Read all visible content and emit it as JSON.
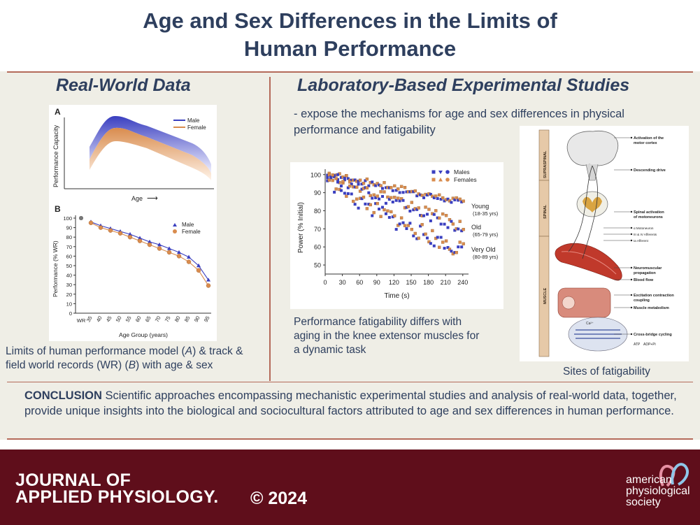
{
  "title": {
    "line1": "Age and Sex Differences in the Limits of",
    "line2": "Human Performance"
  },
  "left": {
    "heading": "Real-World Data",
    "caption_line1": "Limits of human performance model (",
    "caption_A": "A",
    "caption_mid": ") & track &",
    "caption_line2a": "field world records (WR) (",
    "caption_B": "B",
    "caption_line2b": ") with age & sex"
  },
  "chartA": {
    "panel_label": "A",
    "ylabel": "Performance Capacity",
    "xlabel": "Age",
    "arrow": "⟶",
    "legend": [
      "Male",
      "Female"
    ]
  },
  "chart_data": [
    {
      "type": "line",
      "title": "B",
      "xlabel": "Age Group (years)",
      "ylabel": "Performance (% WR)",
      "categories": [
        "WR",
        "35",
        "40",
        "45",
        "50",
        "55",
        "60",
        "65",
        "70",
        "75",
        "80",
        "85",
        "90",
        "95"
      ],
      "yticks": [
        "0",
        "10",
        "20",
        "30",
        "40",
        "50",
        "60",
        "70",
        "80",
        "90",
        "100"
      ],
      "ylim": [
        0,
        100
      ],
      "series": [
        {
          "name": "Male",
          "values": [
            100,
            96,
            92,
            89,
            86,
            83,
            79,
            75,
            72,
            68,
            64,
            59,
            50,
            35
          ]
        },
        {
          "name": "Female",
          "values": [
            100,
            95,
            90,
            87,
            84,
            80,
            76,
            72,
            68,
            64,
            60,
            54,
            45,
            29
          ]
        }
      ]
    },
    {
      "type": "scatter",
      "xlabel": "Time (s)",
      "ylabel": "Power (% Initial)",
      "xticks": [
        "0",
        "30",
        "60",
        "90",
        "120",
        "150",
        "180",
        "210",
        "240"
      ],
      "yticks": [
        "50",
        "60",
        "70",
        "80",
        "90",
        "100"
      ],
      "xlim": [
        0,
        250
      ],
      "ylim": [
        45,
        103
      ],
      "legend": [
        "Males",
        "Females"
      ],
      "groups": [
        {
          "label": "Young",
          "ages": "(18-35 yrs)",
          "start": 100,
          "end": 84
        },
        {
          "label": "Old",
          "ages": "(65-79 yrs)",
          "start": 100,
          "end": 70
        },
        {
          "label": "Very Old",
          "ages": "(80-89 yrs)",
          "start": 100,
          "end": 57
        }
      ]
    }
  ],
  "right": {
    "heading": "Laboratory-Based Experimental Studies",
    "bullet_line1": "- expose the mechanisms for age and sex differences in physical",
    "bullet_line2": "performance and fatigability",
    "fatigue_caption": [
      "Performance fatigability differs with",
      "aging in the knee extensor muscles for",
      "a dynamic task"
    ],
    "sites_caption": "Sites of fatigability"
  },
  "diagram": {
    "bar_labels": [
      "SUPRASPINAL",
      "SPINAL",
      "MUSCLE"
    ],
    "labels": [
      [
        "Activation of the",
        "motor cortex"
      ],
      [
        "Descending drive"
      ],
      [
        "Spinal activation",
        "of motoneurons"
      ],
      [
        "α Motoneuron"
      ],
      [
        "III & IV Afferents"
      ],
      [
        "Ia Afferent"
      ],
      [
        "Neuromuscular",
        "propagation"
      ],
      [
        "Blood flow"
      ],
      [
        "Excitation contraction",
        "coupling"
      ],
      [
        "Muscle metabolism"
      ],
      [
        "Cross-bridge cycling"
      ]
    ],
    "atp": "ATP",
    "adp": "ADP+Pi",
    "ca": "Ca²⁺"
  },
  "conclusion": {
    "label": "CONCLUSION",
    "text": " Scientific approaches encompassing mechanistic experimental studies and analysis of real-world data, together, provide unique insights into the biological and sociocultural factors attributed to age and sex differences in human performance."
  },
  "footer": {
    "journal_line1": "JOURNAL OF",
    "journal_line2": "APPLIED PHYSIOLOGY.",
    "copyright": "© 2024",
    "society": [
      "american",
      "physiological",
      "society"
    ]
  },
  "colors": {
    "navy": "#2e3f5e",
    "maroon": "#5f0e1b",
    "divider": "#b46a5a",
    "male": "#3a3fc0",
    "female": "#d98c4e"
  }
}
